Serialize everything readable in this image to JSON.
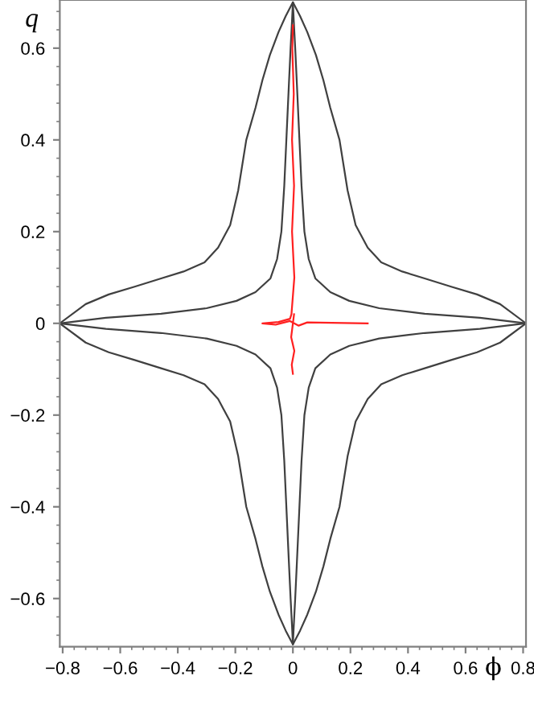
{
  "chart_data": {
    "type": "line",
    "xlabel": "ϕ",
    "ylabel": "q",
    "xlim": [
      -0.81,
      0.81
    ],
    "ylim": [
      -0.705,
      0.705
    ],
    "xticks": [
      {
        "value": -0.8,
        "label": "−0.8"
      },
      {
        "value": -0.6,
        "label": "−0.6"
      },
      {
        "value": -0.4,
        "label": "−0.4"
      },
      {
        "value": -0.2,
        "label": "−0.2"
      },
      0,
      0.2,
      0.4,
      0.6,
      0.8
    ],
    "yticks": [
      {
        "value": -0.6,
        "label": "−0.6"
      },
      {
        "value": -0.4,
        "label": "−0.4"
      },
      {
        "value": -0.2,
        "label": "−0.2"
      },
      0,
      0.2,
      0.4,
      0.6
    ],
    "grid": false,
    "legend": false,
    "line_style": "solid",
    "marker": "none",
    "series": [
      {
        "color": "#404040",
        "x": [
          -0.81,
          -0.72,
          -0.64,
          -0.55,
          -0.458,
          -0.38,
          -0.307,
          -0.26,
          -0.218,
          -0.19,
          -0.162,
          -0.13,
          -0.106,
          -0.08,
          -0.05,
          -0.025,
          0,
          0.025,
          0.05,
          0.08,
          0.106,
          0.13,
          0.162,
          0.19,
          0.218,
          0.26,
          0.307,
          0.38,
          0.458,
          0.55,
          0.64,
          0.72,
          0.81
        ],
        "values": [
          0,
          0.042,
          0.063,
          0.08,
          0.098,
          0.113,
          0.133,
          0.165,
          0.214,
          0.29,
          0.4,
          0.47,
          0.53,
          0.585,
          0.635,
          0.67,
          0.7,
          0.67,
          0.635,
          0.585,
          0.53,
          0.47,
          0.4,
          0.29,
          0.214,
          0.165,
          0.133,
          0.113,
          0.098,
          0.08,
          0.063,
          0.042,
          0
        ]
      },
      {
        "color": "#404040",
        "x": [
          -0.81,
          -0.72,
          -0.64,
          -0.55,
          -0.458,
          -0.38,
          -0.307,
          -0.26,
          -0.218,
          -0.19,
          -0.162,
          -0.13,
          -0.106,
          -0.08,
          -0.05,
          -0.025,
          0,
          0.025,
          0.05,
          0.08,
          0.106,
          0.13,
          0.162,
          0.19,
          0.218,
          0.26,
          0.307,
          0.38,
          0.458,
          0.55,
          0.64,
          0.72,
          0.81
        ],
        "values": [
          0,
          -0.042,
          -0.063,
          -0.08,
          -0.098,
          -0.113,
          -0.133,
          -0.165,
          -0.214,
          -0.29,
          -0.4,
          -0.47,
          -0.53,
          -0.585,
          -0.635,
          -0.67,
          -0.7,
          -0.67,
          -0.635,
          -0.585,
          -0.53,
          -0.47,
          -0.4,
          -0.29,
          -0.214,
          -0.165,
          -0.133,
          -0.113,
          -0.098,
          -0.08,
          -0.063,
          -0.042,
          0
        ]
      },
      {
        "color": "#404040",
        "x": [
          -0.81,
          -0.65,
          -0.458,
          -0.3,
          -0.196,
          -0.13,
          -0.078,
          -0.055,
          -0.04,
          -0.03,
          -0.022,
          -0.014,
          -0.008,
          -0.003,
          0,
          0.003,
          0.008,
          0.014,
          0.022,
          0.03,
          0.04,
          0.055,
          0.078,
          0.13,
          0.196,
          0.3,
          0.458,
          0.65,
          0.81
        ],
        "values": [
          0,
          0.012,
          0.021,
          0.033,
          0.049,
          0.068,
          0.098,
          0.14,
          0.2,
          0.3,
          0.41,
          0.52,
          0.6,
          0.66,
          0.7,
          0.66,
          0.6,
          0.52,
          0.41,
          0.3,
          0.2,
          0.14,
          0.098,
          0.068,
          0.049,
          0.033,
          0.021,
          0.012,
          0
        ]
      },
      {
        "color": "#404040",
        "x": [
          -0.81,
          -0.65,
          -0.458,
          -0.3,
          -0.196,
          -0.13,
          -0.078,
          -0.055,
          -0.04,
          -0.03,
          -0.022,
          -0.014,
          -0.008,
          -0.003,
          0,
          0.003,
          0.008,
          0.014,
          0.022,
          0.03,
          0.04,
          0.055,
          0.078,
          0.13,
          0.196,
          0.3,
          0.458,
          0.65,
          0.81
        ],
        "values": [
          0,
          -0.012,
          -0.021,
          -0.033,
          -0.049,
          -0.068,
          -0.098,
          -0.14,
          -0.2,
          -0.3,
          -0.41,
          -0.52,
          -0.6,
          -0.66,
          -0.7,
          -0.66,
          -0.6,
          -0.52,
          -0.41,
          -0.3,
          -0.2,
          -0.14,
          -0.098,
          -0.068,
          -0.049,
          -0.033,
          -0.021,
          -0.012,
          0
        ]
      },
      {
        "color": "#ff2020",
        "x": [
          0.26,
          0.05,
          0.02,
          -0.01,
          -0.06,
          -0.106,
          -0.05,
          -0.01,
          -0.005,
          0.005,
          -0.003,
          0.004,
          -0.003,
          0.003,
          -0.002,
          0,
          null,
          0.004,
          -0.006,
          0.005,
          -0.004,
          0
        ],
        "values": [
          0,
          0.002,
          -0.005,
          0.005,
          -0.003,
          0,
          0.003,
          0.01,
          0.02,
          0.1,
          0.2,
          0.3,
          0.4,
          0.5,
          0.6,
          0.65,
          null,
          0.02,
          -0.03,
          -0.06,
          -0.09,
          -0.11
        ]
      }
    ]
  }
}
